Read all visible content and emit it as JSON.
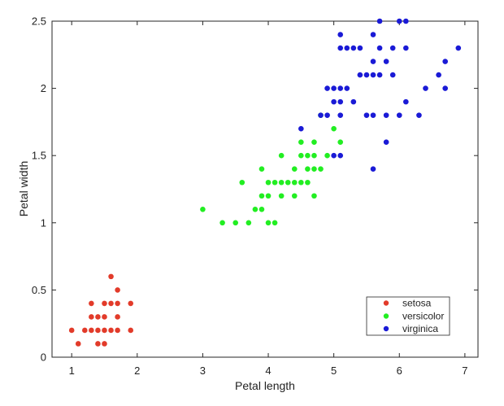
{
  "chart_data": {
    "type": "scatter",
    "title": "",
    "xlabel": "Petal length",
    "ylabel": "Petal width",
    "xlim": [
      0.7,
      7.2
    ],
    "ylim": [
      0,
      2.5
    ],
    "x_ticks": [
      "1",
      "2",
      "3",
      "4",
      "5",
      "6",
      "7"
    ],
    "y_ticks": [
      "0",
      "0.5",
      "1",
      "1.5",
      "2",
      "2.5"
    ],
    "grid": false,
    "legend_position": "bottom-right",
    "series": [
      {
        "name": "setosa",
        "color": "#e23b2a",
        "points": [
          [
            1.0,
            0.2
          ],
          [
            1.1,
            0.1
          ],
          [
            1.2,
            0.2
          ],
          [
            1.3,
            0.2
          ],
          [
            1.3,
            0.3
          ],
          [
            1.3,
            0.4
          ],
          [
            1.4,
            0.1
          ],
          [
            1.4,
            0.2
          ],
          [
            1.4,
            0.3
          ],
          [
            1.5,
            0.1
          ],
          [
            1.5,
            0.2
          ],
          [
            1.5,
            0.3
          ],
          [
            1.5,
            0.4
          ],
          [
            1.6,
            0.2
          ],
          [
            1.6,
            0.4
          ],
          [
            1.6,
            0.6
          ],
          [
            1.7,
            0.2
          ],
          [
            1.7,
            0.3
          ],
          [
            1.7,
            0.4
          ],
          [
            1.7,
            0.5
          ],
          [
            1.9,
            0.2
          ],
          [
            1.9,
            0.4
          ]
        ]
      },
      {
        "name": "versicolor",
        "color": "#22ee22",
        "points": [
          [
            3.0,
            1.1
          ],
          [
            3.3,
            1.0
          ],
          [
            3.5,
            1.0
          ],
          [
            3.6,
            1.3
          ],
          [
            3.7,
            1.0
          ],
          [
            3.8,
            1.1
          ],
          [
            3.9,
            1.1
          ],
          [
            3.9,
            1.2
          ],
          [
            3.9,
            1.4
          ],
          [
            4.0,
            1.0
          ],
          [
            4.0,
            1.2
          ],
          [
            4.0,
            1.3
          ],
          [
            4.1,
            1.0
          ],
          [
            4.1,
            1.3
          ],
          [
            4.2,
            1.2
          ],
          [
            4.2,
            1.3
          ],
          [
            4.2,
            1.5
          ],
          [
            4.3,
            1.3
          ],
          [
            4.4,
            1.2
          ],
          [
            4.4,
            1.3
          ],
          [
            4.4,
            1.4
          ],
          [
            4.5,
            1.3
          ],
          [
            4.5,
            1.5
          ],
          [
            4.5,
            1.6
          ],
          [
            4.6,
            1.3
          ],
          [
            4.6,
            1.4
          ],
          [
            4.6,
            1.5
          ],
          [
            4.7,
            1.2
          ],
          [
            4.7,
            1.4
          ],
          [
            4.7,
            1.5
          ],
          [
            4.7,
            1.6
          ],
          [
            4.8,
            1.4
          ],
          [
            4.8,
            1.8
          ],
          [
            4.9,
            1.5
          ],
          [
            5.0,
            1.7
          ],
          [
            5.1,
            1.6
          ]
        ]
      },
      {
        "name": "virginica",
        "color": "#1a1ad6",
        "points": [
          [
            4.5,
            1.7
          ],
          [
            4.8,
            1.8
          ],
          [
            4.9,
            1.8
          ],
          [
            4.9,
            2.0
          ],
          [
            5.0,
            1.5
          ],
          [
            5.0,
            1.9
          ],
          [
            5.0,
            2.0
          ],
          [
            5.1,
            1.5
          ],
          [
            5.1,
            1.8
          ],
          [
            5.1,
            1.9
          ],
          [
            5.1,
            2.0
          ],
          [
            5.1,
            2.3
          ],
          [
            5.1,
            2.4
          ],
          [
            5.2,
            2.0
          ],
          [
            5.2,
            2.3
          ],
          [
            5.3,
            1.9
          ],
          [
            5.3,
            2.3
          ],
          [
            5.4,
            2.1
          ],
          [
            5.4,
            2.3
          ],
          [
            5.5,
            1.8
          ],
          [
            5.5,
            2.1
          ],
          [
            5.6,
            1.4
          ],
          [
            5.6,
            1.8
          ],
          [
            5.6,
            2.1
          ],
          [
            5.6,
            2.2
          ],
          [
            5.6,
            2.4
          ],
          [
            5.7,
            2.1
          ],
          [
            5.7,
            2.3
          ],
          [
            5.7,
            2.5
          ],
          [
            5.8,
            1.6
          ],
          [
            5.8,
            1.8
          ],
          [
            5.8,
            2.2
          ],
          [
            5.9,
            2.1
          ],
          [
            5.9,
            2.3
          ],
          [
            6.0,
            1.8
          ],
          [
            6.0,
            2.5
          ],
          [
            6.1,
            1.9
          ],
          [
            6.1,
            2.3
          ],
          [
            6.1,
            2.5
          ],
          [
            6.3,
            1.8
          ],
          [
            6.4,
            2.0
          ],
          [
            6.6,
            2.1
          ],
          [
            6.7,
            2.0
          ],
          [
            6.7,
            2.2
          ],
          [
            6.9,
            2.3
          ]
        ]
      }
    ]
  }
}
